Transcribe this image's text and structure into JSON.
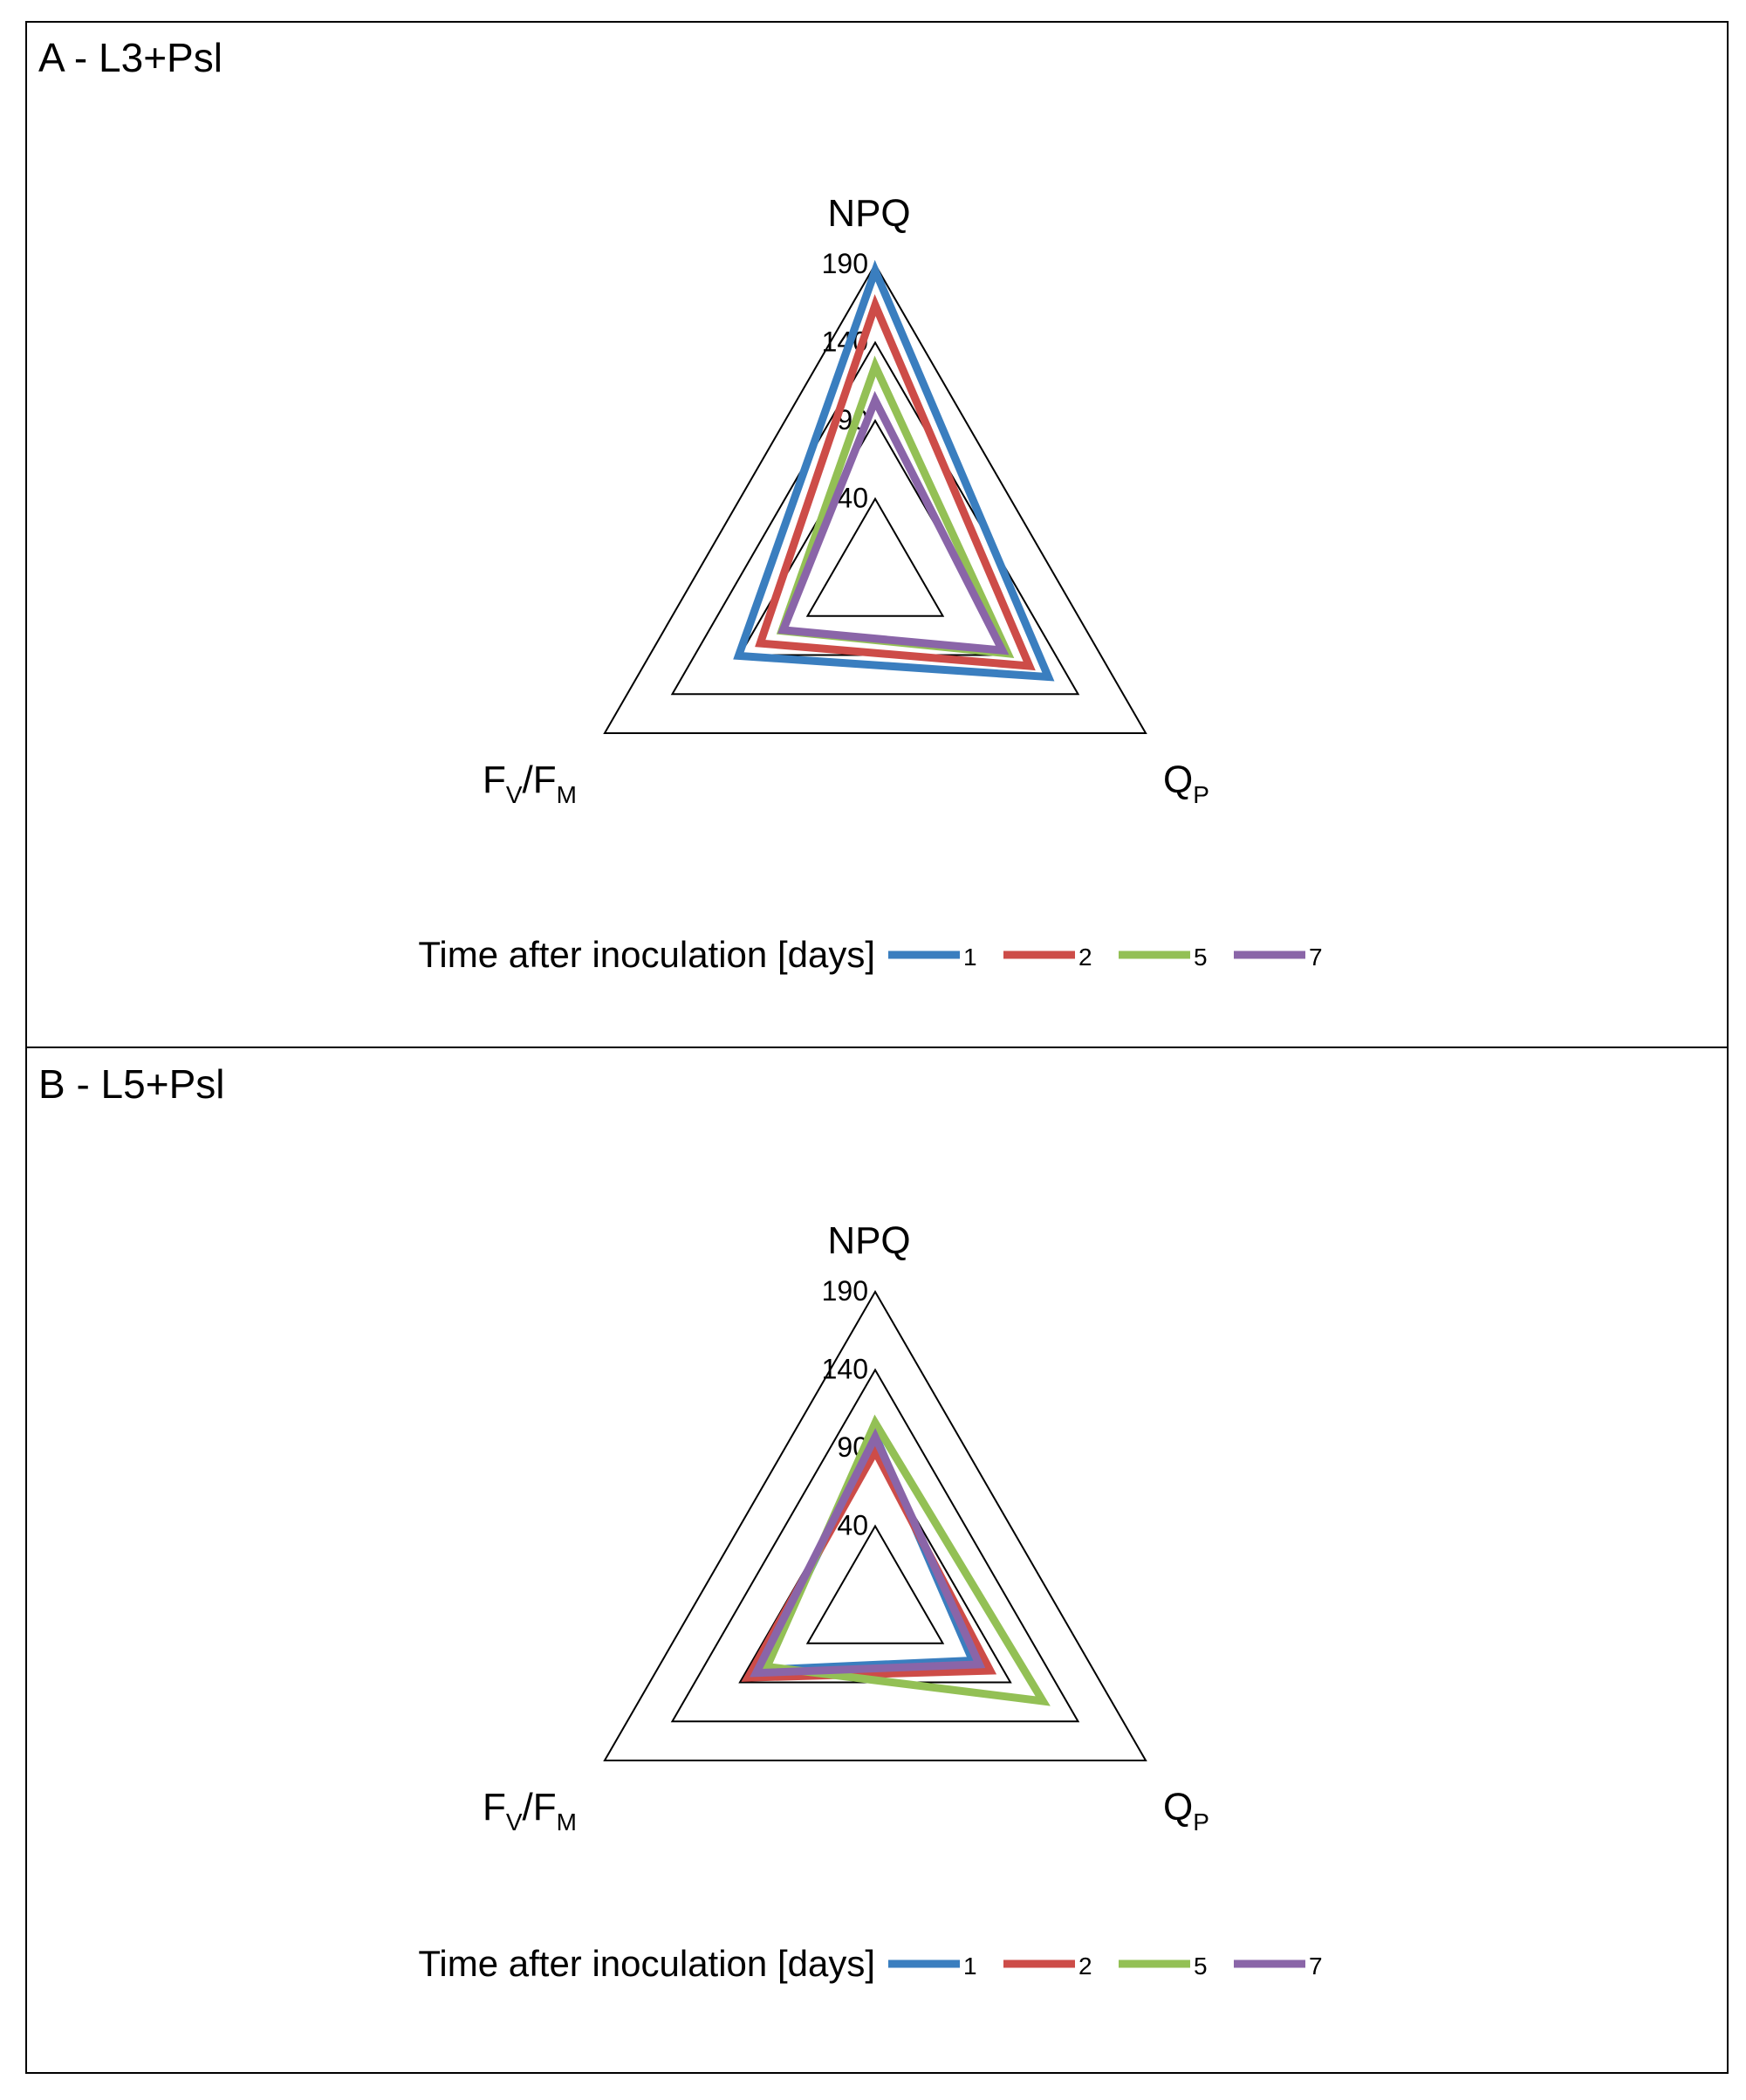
{
  "chart_data": [
    {
      "type": "radar",
      "title": "A - L3+Psl",
      "axes": [
        "NPQ",
        "QP",
        "FV/FM"
      ],
      "axis_labels": [
        {
          "main": "NPQ",
          "sub": ""
        },
        {
          "main": "Q",
          "sub": "P"
        },
        {
          "main": "F",
          "sub": "V",
          "mid": "/F",
          "sub2": "M"
        }
      ],
      "ticks": [
        40,
        90,
        140,
        190
      ],
      "range": [
        -10,
        190
      ],
      "legend": {
        "title": "Time after inoculation [days]",
        "placement": "bottom"
      },
      "series": [
        {
          "name": "1",
          "color": "#3a7ebf",
          "values": [
            186,
            118,
            91
          ]
        },
        {
          "name": "2",
          "color": "#cd4c48",
          "values": [
            164,
            104,
            75
          ]
        },
        {
          "name": "5",
          "color": "#93c055",
          "values": [
            125,
            88,
            59
          ]
        },
        {
          "name": "7",
          "color": "#8a65a8",
          "values": [
            103,
            84,
            58
          ]
        }
      ]
    },
    {
      "type": "radar",
      "title": "B - L5+Psl",
      "axes": [
        "NPQ",
        "QP",
        "FV/FM"
      ],
      "axis_labels": [
        {
          "main": "NPQ",
          "sub": ""
        },
        {
          "main": "Q",
          "sub": "P"
        },
        {
          "main": "F",
          "sub": "V",
          "mid": "/F",
          "sub2": "M"
        }
      ],
      "ticks": [
        40,
        90,
        140,
        190
      ],
      "range": [
        -10,
        190
      ],
      "legend": {
        "title": "Time after inoculation [days]",
        "placement": "bottom"
      },
      "series": [
        {
          "name": "1",
          "color": "#3a7ebf",
          "values": [
            98,
            62,
            74
          ]
        },
        {
          "name": "2",
          "color": "#cd4c48",
          "values": [
            88,
            75,
            84
          ]
        },
        {
          "name": "5",
          "color": "#93c055",
          "values": [
            106,
            114,
            70
          ]
        },
        {
          "name": "7",
          "color": "#8a65a8",
          "values": [
            97,
            67,
            78
          ]
        }
      ]
    }
  ]
}
